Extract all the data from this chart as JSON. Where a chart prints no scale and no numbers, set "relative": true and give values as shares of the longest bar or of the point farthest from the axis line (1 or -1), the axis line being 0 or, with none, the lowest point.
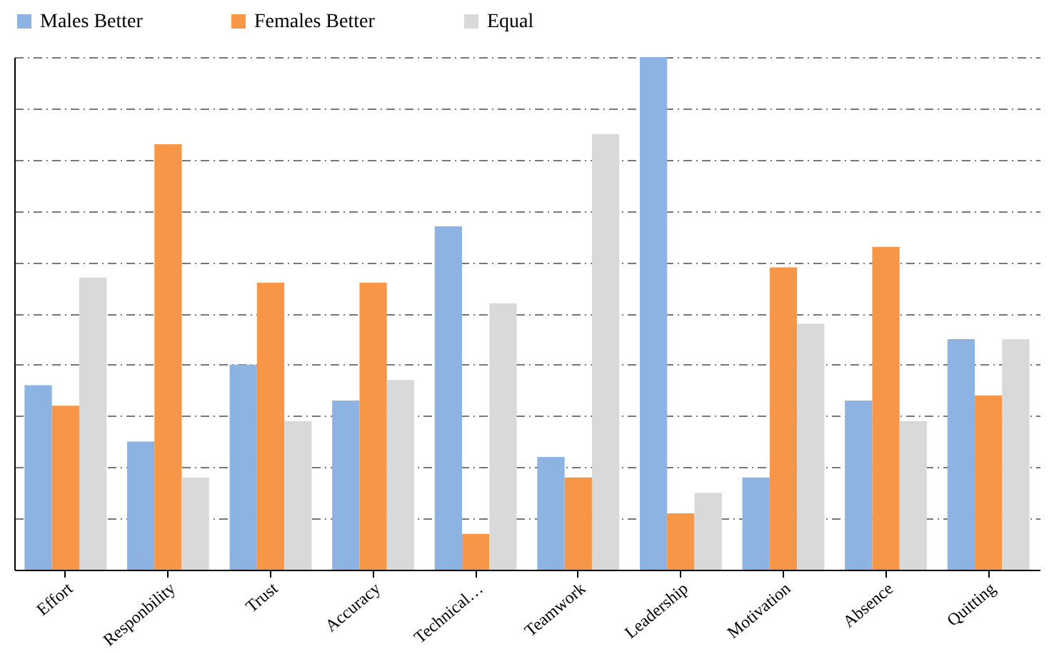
{
  "chart_data": {
    "type": "bar",
    "relative": true,
    "grid": "y",
    "legend": "top",
    "categories": [
      "Effort",
      "Responbility",
      "Trust",
      "Accuracy",
      "Technical…",
      "Teamwork",
      "Leadership",
      "Motivation",
      "Absence",
      "Quitting"
    ],
    "series": [
      {
        "name": "Males Better",
        "color": "#8db3e2",
        "values": [
          0.36,
          0.25,
          0.4,
          0.33,
          0.67,
          0.22,
          1,
          0.18,
          0.33,
          0.45
        ]
      },
      {
        "name": "Females Better",
        "color": "#f79646",
        "values": [
          0.32,
          0.83,
          0.56,
          0.56,
          0.07,
          0.18,
          0.11,
          0.59,
          0.63,
          0.34
        ]
      },
      {
        "name": "Equal",
        "color": "#d9d9d9",
        "values": [
          0.57,
          0.18,
          0.29,
          0.37,
          0.52,
          0.85,
          0.15,
          0.48,
          0.29,
          0.45
        ]
      }
    ]
  }
}
